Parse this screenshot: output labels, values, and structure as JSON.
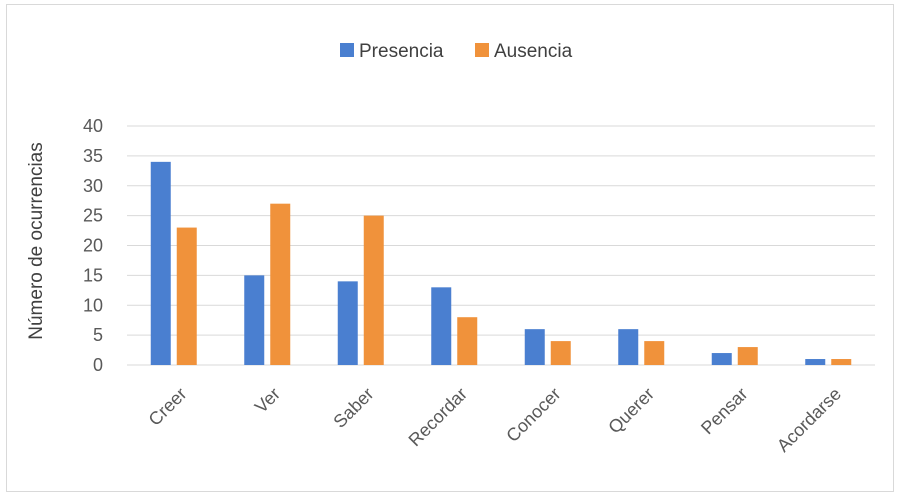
{
  "chart_data": {
    "type": "bar",
    "title": "",
    "xlabel": "",
    "ylabel": "Número de ocurrencias",
    "ylim": [
      0,
      40
    ],
    "yticks": [
      0,
      5,
      10,
      15,
      20,
      25,
      30,
      35,
      40
    ],
    "grid": true,
    "legend_position": "top",
    "categories": [
      "Creer",
      "Ver",
      "Saber",
      "Recordar",
      "Conocer",
      "Querer",
      "Pensar",
      "Acordarse"
    ],
    "series": [
      {
        "name": "Presencia",
        "color": "#4a7fd0",
        "values": [
          34,
          15,
          14,
          13,
          6,
          6,
          2,
          1
        ]
      },
      {
        "name": "Ausencia",
        "color": "#f0923b",
        "values": [
          23,
          27,
          25,
          8,
          4,
          4,
          3,
          1
        ]
      }
    ]
  }
}
